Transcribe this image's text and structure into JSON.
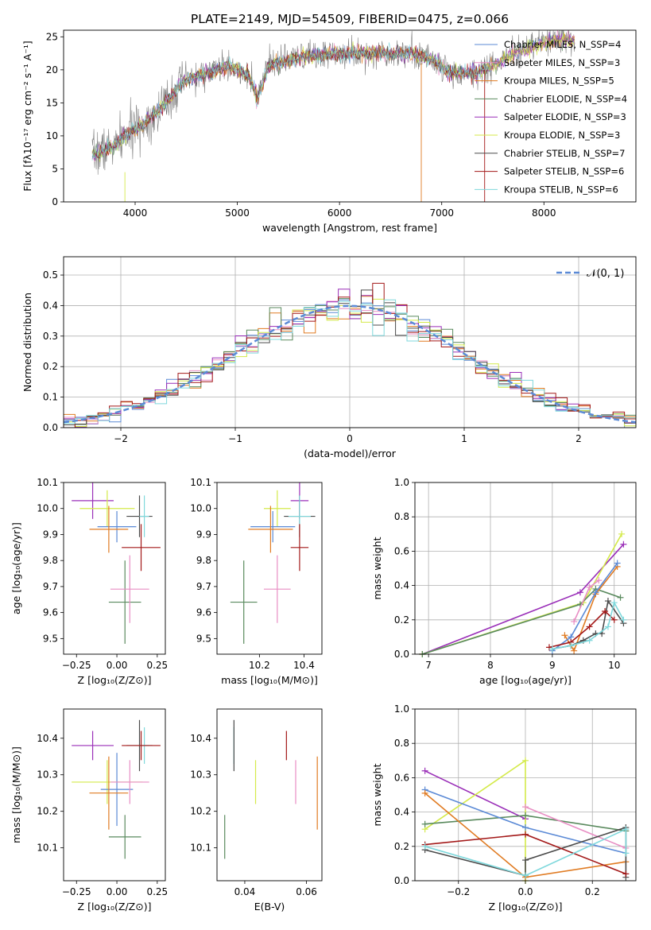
{
  "figure_title": "PLATE=2149, MJD=54509, FIBERID=0475, z=0.066",
  "colors": {
    "Chabrier MILES": "#5b8ad6",
    "Salpeter MILES": "#e88ec4",
    "Kroupa MILES": "#e07b22",
    "Chabrier ELODIE": "#5a8a5e",
    "Salpeter ELODIE": "#9a2fb8",
    "Kroupa ELODIE": "#d4ea4a",
    "Chabrier STELIB": "#4b4b4b",
    "Salpeter STELIB": "#a31818",
    "Kroupa STELIB": "#7fd8dc",
    "data": "#808080",
    "normal": "#5b8ad6"
  },
  "chart_data": [
    {
      "id": "spectrum",
      "type": "line",
      "xlabel": "wavelength [Angstrom, rest frame]",
      "ylabel": "Flux [fλ10⁻¹⁷ erg cm⁻² s⁻¹ A⁻¹]",
      "xlim": [
        3300,
        8900
      ],
      "ylim": [
        0,
        26
      ],
      "xticks": [
        4000,
        5000,
        6000,
        7000,
        8000
      ],
      "yticks": [
        0,
        5,
        10,
        15,
        20,
        25
      ],
      "legend_position": "top-right",
      "legend": [
        "Chabrier MILES, N_SSP=4",
        "Salpeter MILES, N_SSP=3",
        "Kroupa MILES, N_SSP=5",
        "Chabrier ELODIE, N_SSP=4",
        "Salpeter ELODIE, N_SSP=3",
        "Kroupa ELODIE, N_SSP=3",
        "Chabrier STELIB, N_SSP=7",
        "Salpeter STELIB, N_SSP=6",
        "Kroupa STELIB, N_SSP=6"
      ],
      "continuum": {
        "x": [
          3580,
          3700,
          3800,
          3900,
          4000,
          4100,
          4200,
          4300,
          4400,
          4500,
          4700,
          4900,
          5100,
          5200,
          5300,
          5500,
          5700,
          5900,
          6100,
          6300,
          6500,
          6700,
          6900,
          7100,
          7300,
          7500,
          7700,
          7900,
          8100,
          8300
        ],
        "y": [
          7,
          8,
          8.5,
          10,
          11,
          12,
          13.5,
          15,
          17,
          18.5,
          19.5,
          20.5,
          19.5,
          15.5,
          20.5,
          21.5,
          22,
          22.5,
          22.5,
          22.5,
          22.5,
          22.5,
          21.5,
          19.5,
          19.5,
          20.5,
          22.5,
          23.5,
          24.5,
          24.5
        ]
      }
    },
    {
      "id": "residuals",
      "type": "histogram",
      "xlabel": "(data-model)/error",
      "ylabel": "Normed distribution",
      "xlim": [
        -2.5,
        2.5
      ],
      "ylim": [
        0,
        0.56
      ],
      "xticks": [
        -2,
        -1,
        0,
        1,
        2
      ],
      "yticks": [
        0.0,
        0.1,
        0.2,
        0.3,
        0.4,
        0.5
      ],
      "grid": true,
      "legend": "𝒩(0, 1)",
      "legend_position": "top-right",
      "bin_width": 0.1
    },
    {
      "id": "age_vs_Z",
      "type": "errorbar",
      "xlabel": "Z [log₁₀(Z/Z⊙)]",
      "ylabel": "age  [log₁₀(age/yr)]",
      "xlim": [
        -0.33,
        0.3
      ],
      "ylim": [
        9.44,
        10.1
      ],
      "xticks": [
        -0.25,
        0.0,
        0.25
      ],
      "yticks": [
        9.5,
        9.6,
        9.7,
        9.8,
        9.9,
        10.0,
        10.1
      ],
      "points": [
        {
          "series": "Salpeter ELODIE",
          "x": -0.15,
          "xerr": 0.13,
          "y": 10.03,
          "yerr": 0.07
        },
        {
          "series": "Kroupa ELODIE",
          "x": -0.06,
          "xerr": 0.17,
          "y": 10.0,
          "yerr": 0.07
        },
        {
          "series": "Chabrier MILES",
          "x": 0.0,
          "xerr": 0.12,
          "y": 9.93,
          "yerr": 0.06
        },
        {
          "series": "Kroupa MILES",
          "x": -0.05,
          "xerr": 0.12,
          "y": 9.92,
          "yerr": 0.09
        },
        {
          "series": "Chabrier STELIB",
          "x": 0.14,
          "xerr": 0.08,
          "y": 9.97,
          "yerr": 0.08
        },
        {
          "series": "Kroupa STELIB",
          "x": 0.17,
          "xerr": 0.03,
          "y": 9.97,
          "yerr": 0.08
        },
        {
          "series": "Salpeter STELIB",
          "x": 0.15,
          "xerr": 0.12,
          "y": 9.85,
          "yerr": 0.09
        },
        {
          "series": "Chabrier ELODIE",
          "x": 0.05,
          "xerr": 0.1,
          "y": 9.64,
          "yerr": 0.16
        },
        {
          "series": "Salpeter MILES",
          "x": 0.08,
          "xerr": 0.12,
          "y": 9.69,
          "yerr": 0.13
        }
      ]
    },
    {
      "id": "age_vs_mass",
      "type": "errorbar",
      "xlabel": "mass [log₁₀(M/M⊙)]",
      "ylabel": "",
      "xlim": [
        10.01,
        10.48
      ],
      "ylim": [
        9.44,
        10.1
      ],
      "xticks": [
        10.2,
        10.4
      ],
      "yticks": [
        9.5,
        9.6,
        9.7,
        9.8,
        9.9,
        10.0,
        10.1
      ],
      "points": [
        {
          "series": "Salpeter ELODIE",
          "x": 10.38,
          "xerr": 0.04,
          "y": 10.03,
          "yerr": 0.07
        },
        {
          "series": "Kroupa ELODIE",
          "x": 10.28,
          "xerr": 0.06,
          "y": 10.0,
          "yerr": 0.07
        },
        {
          "series": "Chabrier MILES",
          "x": 10.26,
          "xerr": 0.1,
          "y": 9.93,
          "yerr": 0.06
        },
        {
          "series": "Kroupa MILES",
          "x": 10.25,
          "xerr": 0.1,
          "y": 9.92,
          "yerr": 0.09
        },
        {
          "series": "Chabrier STELIB",
          "x": 10.38,
          "xerr": 0.07,
          "y": 9.97,
          "yerr": 0.08
        },
        {
          "series": "Kroupa STELIB",
          "x": 10.38,
          "xerr": 0.05,
          "y": 9.97,
          "yerr": 0.08
        },
        {
          "series": "Salpeter STELIB",
          "x": 10.38,
          "xerr": 0.04,
          "y": 9.85,
          "yerr": 0.09
        },
        {
          "series": "Chabrier ELODIE",
          "x": 10.13,
          "xerr": 0.06,
          "y": 9.64,
          "yerr": 0.16
        },
        {
          "series": "Salpeter MILES",
          "x": 10.28,
          "xerr": 0.06,
          "y": 9.69,
          "yerr": 0.13
        }
      ]
    },
    {
      "id": "weight_vs_age",
      "type": "line",
      "xlabel": "age  [log₁₀(age/yr)]",
      "ylabel": "mass weight",
      "xlim": [
        6.78,
        10.35
      ],
      "ylim": [
        0,
        1
      ],
      "xticks": [
        7,
        8,
        9,
        10
      ],
      "yticks": [
        0.0,
        0.2,
        0.4,
        0.6,
        0.8,
        1.0
      ],
      "grid": true,
      "series": [
        {
          "series": "Salpeter ELODIE",
          "x": [
            6.9,
            9.45,
            10.15
          ],
          "y": [
            0.0,
            0.36,
            0.64
          ]
        },
        {
          "series": "Kroupa ELODIE",
          "x": [
            6.9,
            9.5,
            10.12
          ],
          "y": [
            0.0,
            0.3,
            0.7
          ]
        },
        {
          "series": "Chabrier ELODIE",
          "x": [
            6.9,
            9.45,
            9.7,
            10.1
          ],
          "y": [
            0.0,
            0.29,
            0.38,
            0.33
          ]
        },
        {
          "series": "Kroupa MILES",
          "x": [
            9.2,
            9.35,
            9.7,
            10.05
          ],
          "y": [
            0.11,
            0.02,
            0.35,
            0.51
          ]
        },
        {
          "series": "Chabrier MILES",
          "x": [
            9.0,
            9.3,
            9.7,
            10.05
          ],
          "y": [
            0.02,
            0.1,
            0.36,
            0.53
          ]
        },
        {
          "series": "Salpeter MILES",
          "x": [
            9.35,
            9.6,
            9.75
          ],
          "y": [
            0.19,
            0.39,
            0.43
          ]
        },
        {
          "series": "Chabrier STELIB",
          "x": [
            9.0,
            9.3,
            9.5,
            9.7,
            9.8,
            9.9,
            10.15
          ],
          "y": [
            0.03,
            0.05,
            0.08,
            0.12,
            0.12,
            0.31,
            0.18
          ]
        },
        {
          "series": "Salpeter STELIB",
          "x": [
            8.95,
            9.3,
            9.6,
            9.85,
            10.0
          ],
          "y": [
            0.04,
            0.07,
            0.16,
            0.25,
            0.2
          ]
        },
        {
          "series": "Kroupa STELIB",
          "x": [
            9.0,
            9.3,
            9.6,
            9.9,
            10.0,
            10.15
          ],
          "y": [
            0.03,
            0.05,
            0.08,
            0.16,
            0.3,
            0.2
          ]
        }
      ]
    },
    {
      "id": "mass_vs_Z",
      "type": "errorbar",
      "xlabel": "Z [log₁₀(Z/Z⊙)]",
      "ylabel": "mass [log₁₀(M/M⊙)]",
      "xlim": [
        -0.33,
        0.3
      ],
      "ylim": [
        10.01,
        10.48
      ],
      "xticks": [
        -0.25,
        0.0,
        0.25
      ],
      "yticks": [
        10.1,
        10.2,
        10.3,
        10.4
      ],
      "points": [
        {
          "series": "Salpeter ELODIE",
          "x": -0.15,
          "xerr": 0.13,
          "y": 10.38,
          "yerr": 0.04
        },
        {
          "series": "Kroupa ELODIE",
          "x": -0.06,
          "xerr": 0.22,
          "y": 10.28,
          "yerr": 0.06
        },
        {
          "series": "Chabrier MILES",
          "x": 0.0,
          "xerr": 0.1,
          "y": 10.26,
          "yerr": 0.1
        },
        {
          "series": "Kroupa MILES",
          "x": -0.05,
          "xerr": 0.12,
          "y": 10.25,
          "yerr": 0.1
        },
        {
          "series": "Chabrier STELIB",
          "x": 0.14,
          "xerr": 0.08,
          "y": 10.38,
          "yerr": 0.07
        },
        {
          "series": "Kroupa STELIB",
          "x": 0.17,
          "xerr": 0.03,
          "y": 10.38,
          "yerr": 0.05
        },
        {
          "series": "Salpeter STELIB",
          "x": 0.15,
          "xerr": 0.12,
          "y": 10.38,
          "yerr": 0.04
        },
        {
          "series": "Chabrier ELODIE",
          "x": 0.05,
          "xerr": 0.1,
          "y": 10.13,
          "yerr": 0.06
        },
        {
          "series": "Salpeter MILES",
          "x": 0.08,
          "xerr": 0.12,
          "y": 10.28,
          "yerr": 0.06
        }
      ]
    },
    {
      "id": "mass_vs_ebv",
      "type": "errorbar",
      "xlabel": "E(B-V)",
      "ylabel": "",
      "xlim": [
        0.031,
        0.065
      ],
      "ylim": [
        10.01,
        10.48
      ],
      "xticks": [
        0.04,
        0.06
      ],
      "yticks": [
        10.1,
        10.2,
        10.3,
        10.4
      ],
      "points": [
        {
          "series": "Chabrier ELODIE",
          "x": 0.0335,
          "y": 10.13,
          "yerr": 0.06
        },
        {
          "series": "Kroupa STELIB",
          "x": 0.0365,
          "y": 10.38,
          "yerr": 0.05
        },
        {
          "series": "Chabrier STELIB",
          "x": 0.0365,
          "y": 10.38,
          "yerr": 0.07
        },
        {
          "series": "Kroupa ELODIE",
          "x": 0.0435,
          "y": 10.28,
          "yerr": 0.06
        },
        {
          "series": "Salpeter STELIB",
          "x": 0.0535,
          "y": 10.38,
          "yerr": 0.04
        },
        {
          "series": "Salpeter MILES",
          "x": 0.0565,
          "y": 10.28,
          "yerr": 0.06
        },
        {
          "series": "Kroupa MILES",
          "x": 0.0635,
          "y": 10.25,
          "yerr": 0.1
        }
      ]
    },
    {
      "id": "weight_vs_Z",
      "type": "line",
      "xlabel": "Z [log₁₀(Z/Z⊙)]",
      "ylabel": "mass weight",
      "xlim": [
        -0.33,
        0.33
      ],
      "ylim": [
        0,
        1
      ],
      "xticks": [
        -0.2,
        0.0,
        0.2
      ],
      "yticks": [
        0.0,
        0.2,
        0.4,
        0.6,
        0.8,
        1.0
      ],
      "grid": true,
      "series": [
        {
          "series": "Salpeter ELODIE",
          "x": [
            -0.3,
            0.0
          ],
          "y": [
            0.64,
            0.36
          ]
        },
        {
          "series": "Kroupa ELODIE",
          "x": [
            -0.3,
            0.0,
            0.0
          ],
          "y": [
            0.3,
            0.7,
            0.0
          ]
        },
        {
          "series": "Chabrier ELODIE",
          "x": [
            -0.3,
            0.0,
            0.3
          ],
          "y": [
            0.33,
            0.38,
            0.29
          ]
        },
        {
          "series": "Chabrier MILES",
          "x": [
            -0.3,
            0.0,
            0.3
          ],
          "y": [
            0.53,
            0.31,
            0.16
          ]
        },
        {
          "series": "Kroupa MILES",
          "x": [
            -0.3,
            0.0,
            0.3
          ],
          "y": [
            0.51,
            0.02,
            0.11
          ]
        },
        {
          "series": "Salpeter MILES",
          "x": [
            0.0,
            0.3
          ],
          "y": [
            0.43,
            0.19
          ]
        },
        {
          "series": "Chabrier STELIB",
          "x": [
            -0.3,
            0.0,
            0.0,
            0.3,
            0.3
          ],
          "y": [
            0.18,
            0.03,
            0.12,
            0.31,
            0.02
          ]
        },
        {
          "series": "Salpeter STELIB",
          "x": [
            -0.3,
            0.0,
            0.3
          ],
          "y": [
            0.21,
            0.27,
            0.04
          ]
        },
        {
          "series": "Kroupa STELIB",
          "x": [
            -0.3,
            0.0,
            0.3,
            0.3
          ],
          "y": [
            0.2,
            0.03,
            0.3,
            0.16
          ]
        }
      ]
    }
  ]
}
